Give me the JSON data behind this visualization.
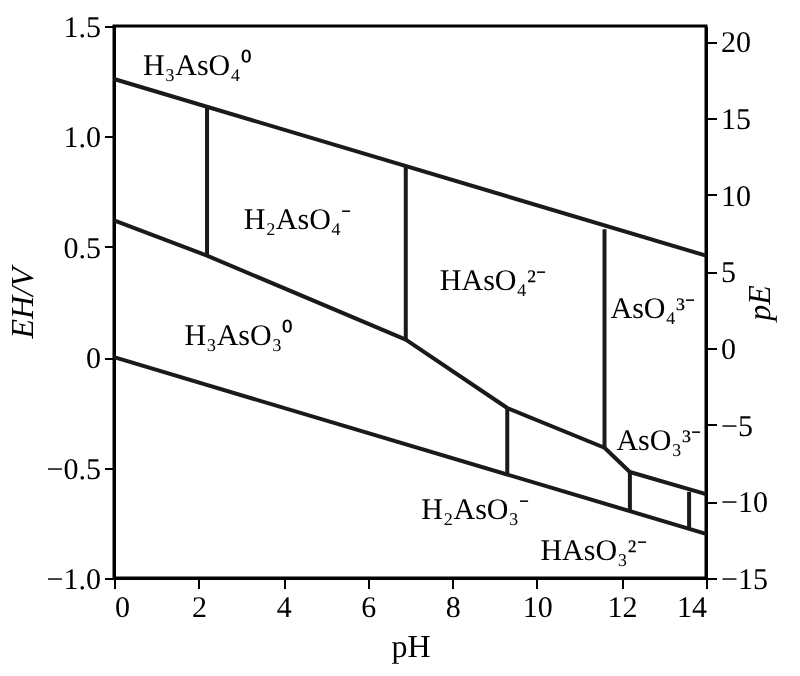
{
  "chart_data": {
    "type": "line",
    "xlabel": "pH",
    "ylabel": "EH/V",
    "y2label": "pE",
    "xlim": [
      0,
      14
    ],
    "xticks": [
      0,
      2,
      4,
      6,
      8,
      10,
      12,
      14
    ],
    "ylim": [
      -1.0,
      1.5
    ],
    "yticks": [
      {
        "value": -1.0,
        "label": "−1.0"
      },
      {
        "value": -0.5,
        "label": "−0.5"
      },
      0,
      0.5,
      {
        "value": 1.0,
        "label": "1.0"
      },
      1.5
    ],
    "y2lim": [
      -15,
      21
    ],
    "y2ticks": [
      {
        "value": -15,
        "label": "−15"
      },
      {
        "value": -10,
        "label": "−10"
      },
      {
        "value": -5,
        "label": "−5"
      },
      0,
      5,
      10,
      15,
      20
    ],
    "marker": "none",
    "line_style": "solid",
    "series": [
      {
        "color": "#1a1a1a",
        "x": [
          0,
          14
        ],
        "values": [
          1.26,
          0.46
        ]
      },
      {
        "color": "#1a1a1a",
        "x": [
          0,
          14
        ],
        "values": [
          0,
          -0.8
        ]
      },
      {
        "color": "#1a1a1a",
        "x": [
          0,
          2.2,
          6.9,
          9.3,
          11.6,
          12.2,
          14
        ],
        "values": [
          0.62,
          0.46,
          0.08,
          -0.23,
          -0.41,
          -0.52,
          -0.62
        ]
      },
      {
        "color": "#1a1a1a",
        "x": [
          2.2,
          2.2
        ],
        "values": [
          0.46,
          1.13
        ]
      },
      {
        "color": "#1a1a1a",
        "x": [
          6.9,
          6.9
        ],
        "values": [
          0.08,
          0.87
        ]
      },
      {
        "color": "#1a1a1a",
        "x": [
          11.6,
          11.6
        ],
        "values": [
          -0.41,
          0.58
        ]
      },
      {
        "color": "#1a1a1a",
        "x": [
          9.3,
          9.3
        ],
        "values": [
          -0.23,
          -0.53
        ]
      },
      {
        "color": "#1a1a1a",
        "x": [
          12.2,
          12.2
        ],
        "values": [
          -0.52,
          -0.7
        ]
      },
      {
        "color": "#1a1a1a",
        "x": [
          13.6,
          13.6
        ],
        "values": [
          -0.61,
          -0.78
        ]
      }
    ],
    "annotations": [
      "H₃AsO₄⁰",
      "H₂AsO₄⁻",
      "HAsO₄²⁻",
      "AsO₄³⁻",
      "H₃AsO₃⁰",
      "H₂AsO₃⁻",
      "HAsO₃²⁻",
      "AsO₃³⁻"
    ]
  }
}
